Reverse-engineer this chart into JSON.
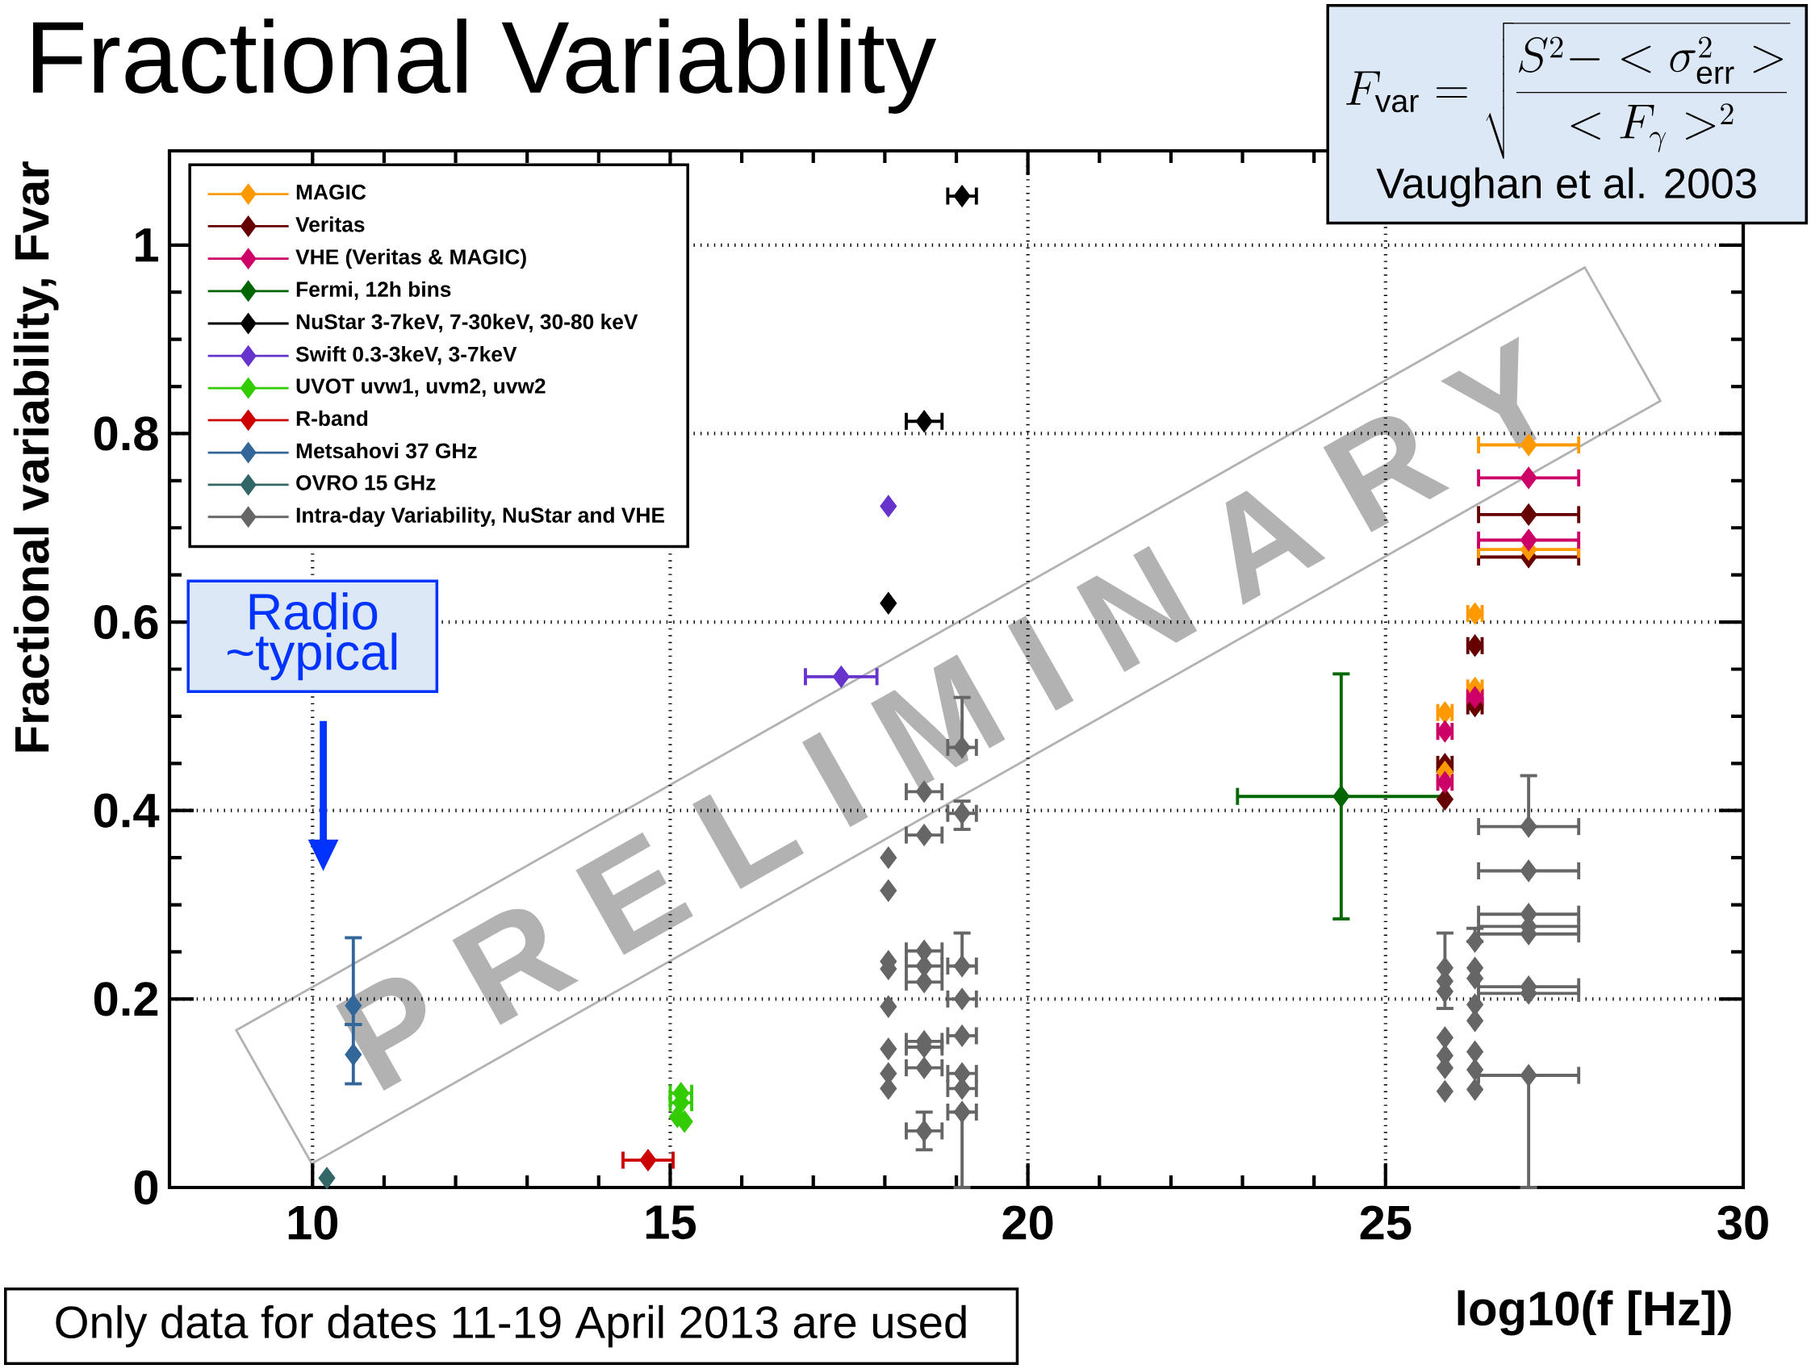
{
  "chart_data": {
    "type": "scatter",
    "title": "Fractional Variability",
    "xlabel": "log10(f [Hz])",
    "ylabel": "Fractional variability, Fvar",
    "xlim": [
      8,
      30
    ],
    "ylim": [
      0,
      1.1
    ],
    "xticks": [
      10,
      15,
      20,
      25,
      30
    ],
    "yticks": [
      0,
      0.2,
      0.4,
      0.6,
      0.8,
      1
    ],
    "grid": true,
    "legend": "top left",
    "marker": "diamond",
    "annotations": [
      "F_{\\mathrm{var}} = \\sqrt{\\frac{S^2 - <\\sigma^2_{\\mathrm{err}}>}{<F_\\gamma>^2}}",
      "Vaughan et al. 2003",
      "Radio ~typical",
      "P R E L I M I N A R Y",
      "Only data for dates 11-19 April 2013 are used"
    ],
    "series": [
      {
        "name": "MAGIC",
        "color": "#ff9900",
        "x": [
          27.0,
          27.0,
          26.25,
          26.25,
          25.83,
          25.83
        ],
        "values": [
          0.788,
          0.677,
          0.609,
          0.53,
          0.504,
          0.441
        ],
        "xerrors": [
          0.7,
          0.7,
          0.1,
          0.1,
          0.1,
          null
        ]
      },
      {
        "name": "Veritas",
        "color": "#660000",
        "x": [
          27.0,
          27.0,
          26.25,
          26.25,
          25.83,
          25.83
        ],
        "values": [
          0.714,
          0.669,
          0.575,
          0.511,
          0.449,
          0.412
        ],
        "xerrors": [
          0.7,
          0.7,
          0.1,
          0.1,
          0.1,
          null
        ]
      },
      {
        "name": "VHE (Veritas & MAGIC)",
        "color": "#cc0066",
        "x": [
          27.0,
          27.0,
          26.25,
          25.83,
          25.83
        ],
        "values": [
          0.753,
          0.687,
          0.52,
          0.484,
          0.43
        ],
        "xerrors": [
          0.7,
          0.7,
          0.1,
          0.1,
          0.1
        ]
      },
      {
        "name": "Fermi, 12h bins",
        "color": "#006600",
        "x": [
          24.38
        ],
        "values": [
          0.415
        ],
        "errors": [
          0.13
        ],
        "xerrors": [
          1.45
        ]
      },
      {
        "name": "NuStar 3-7keV, 7-30keV, 30-80 keV",
        "color": "#000000",
        "x": [
          19.08,
          18.55,
          18.05
        ],
        "values": [
          1.052,
          0.813,
          0.62
        ],
        "xerrors": [
          0.2,
          0.25,
          null
        ]
      },
      {
        "name": "Swift 0.3-3keV, 3-7keV",
        "color": "#6633cc",
        "x": [
          18.05,
          17.39
        ],
        "values": [
          0.723,
          0.542
        ],
        "xerrors": [
          null,
          0.5
        ]
      },
      {
        "name": "UVOT uvw1, uvm2, uvw2",
        "color": "#33cc00",
        "x": [
          15.15,
          15.15,
          15.2,
          15.1
        ],
        "values": [
          0.1,
          0.09,
          0.07,
          0.075
        ],
        "xerrors": [
          0.15,
          0.15,
          null,
          null
        ]
      },
      {
        "name": "R-band",
        "color": "#cc0000",
        "x": [
          14.69
        ],
        "values": [
          0.029
        ],
        "xerrors": [
          0.35
        ]
      },
      {
        "name": "Metsahovi 37 GHz",
        "color": "#336699",
        "x": [
          10.57,
          10.57
        ],
        "values": [
          0.193,
          0.141
        ],
        "errors": [
          [
            0.173,
            0.265
          ],
          [
            0.11,
            0.173
          ]
        ]
      },
      {
        "name": "OVRO 15 GHz",
        "color": "#336666",
        "x": [
          10.2
        ],
        "values": [
          0.01
        ]
      },
      {
        "name": "Intra-day Variability, NuStar and VHE",
        "color": "#666666",
        "x": [
          18.05,
          18.05,
          18.05,
          18.05,
          18.05,
          18.05,
          18.05,
          18.05,
          18.55,
          18.55,
          18.55,
          18.55,
          18.55,
          18.55,
          18.55,
          18.55,
          18.55,
          19.08,
          19.08,
          19.08,
          19.08,
          19.08,
          19.08,
          19.08,
          19.08,
          25.83,
          25.83,
          25.83,
          25.83,
          25.83,
          25.83,
          25.83,
          26.25,
          26.25,
          26.25,
          26.25,
          26.25,
          26.25,
          26.25,
          26.25,
          27.0,
          27.0,
          27.0,
          27.0,
          27.0,
          27.0,
          27.0,
          27.0
        ],
        "values": [
          0.35,
          0.315,
          0.24,
          0.232,
          0.192,
          0.147,
          0.121,
          0.105,
          0.42,
          0.374,
          0.251,
          0.235,
          0.218,
          0.155,
          0.149,
          0.127,
          0.06,
          0.467,
          0.397,
          0.235,
          0.2,
          0.161,
          0.121,
          0.105,
          0.08,
          0.233,
          0.219,
          0.208,
          0.159,
          0.14,
          0.127,
          0.102,
          0.261,
          0.233,
          0.222,
          0.194,
          0.177,
          0.144,
          0.125,
          0.104,
          0.383,
          0.336,
          0.29,
          0.277,
          0.269,
          0.213,
          0.206,
          0.119
        ],
        "errors": [
          null,
          null,
          null,
          null,
          null,
          null,
          null,
          null,
          null,
          null,
          null,
          null,
          null,
          null,
          null,
          null,
          0.02,
          [
            0.467,
            0.52
          ],
          [
            0.38,
            0.41
          ],
          [
            0.235,
            0.27
          ],
          null,
          null,
          null,
          null,
          [
            0,
            0.08
          ],
          [
            0.19,
            0.27
          ],
          null,
          null,
          null,
          null,
          null,
          null,
          [
            0.261,
            0.275
          ],
          null,
          null,
          null,
          null,
          null,
          null,
          null,
          [
            0.383,
            0.437
          ],
          null,
          null,
          null,
          null,
          null,
          null,
          [
            0,
            0.119
          ]
        ],
        "xerrors": [
          null,
          null,
          null,
          null,
          null,
          null,
          null,
          null,
          0.25,
          0.25,
          0.25,
          0.25,
          0.25,
          0.25,
          0.25,
          0.25,
          0.25,
          0.2,
          0.2,
          0.2,
          0.2,
          0.2,
          0.2,
          0.2,
          0.2,
          null,
          null,
          null,
          null,
          null,
          null,
          null,
          null,
          null,
          null,
          null,
          null,
          null,
          null,
          null,
          0.7,
          0.7,
          0.7,
          0.7,
          0.7,
          0.7,
          0.7,
          0.7
        ]
      }
    ]
  }
}
